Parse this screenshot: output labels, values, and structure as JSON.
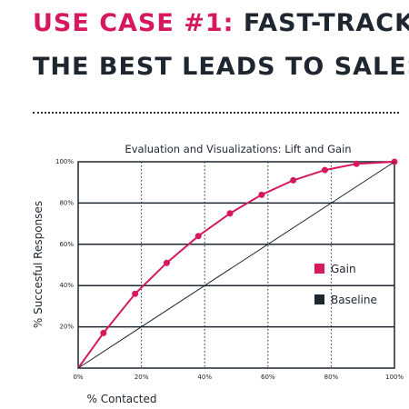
{
  "header": {
    "line1_accent": "USE CASE #1:",
    "line1_rest": " FAST-TRACK",
    "line2": "THE BEST LEADS TO SALES"
  },
  "chart_data": {
    "type": "line",
    "title": "Evaluation and Visualizations: Lift and Gain",
    "xlabel": "% Contacted",
    "ylabel": "% Succesful Responses",
    "xlim": [
      0,
      100
    ],
    "ylim": [
      0,
      100
    ],
    "x_ticks": [
      0,
      20,
      40,
      60,
      80,
      100
    ],
    "y_ticks": [
      20,
      40,
      60,
      80,
      100
    ],
    "x_tick_labels": [
      "0%",
      "20%",
      "40%",
      "60%",
      "80%",
      "100%"
    ],
    "y_tick_labels": [
      "20%",
      "40%",
      "60%",
      "80%",
      "100%"
    ],
    "grid": true,
    "legend_position": "right",
    "series": [
      {
        "name": "Gain",
        "color": "#d6195f",
        "markers": true,
        "x": [
          0,
          8,
          18,
          28,
          38,
          48,
          58,
          68,
          78,
          88,
          100
        ],
        "y": [
          0,
          17,
          36,
          51,
          64,
          75,
          84,
          91,
          96,
          99,
          100
        ]
      },
      {
        "name": "Baseline",
        "color": "#1e2630",
        "markers": false,
        "x": [
          0,
          100
        ],
        "y": [
          0,
          100
        ]
      }
    ]
  }
}
